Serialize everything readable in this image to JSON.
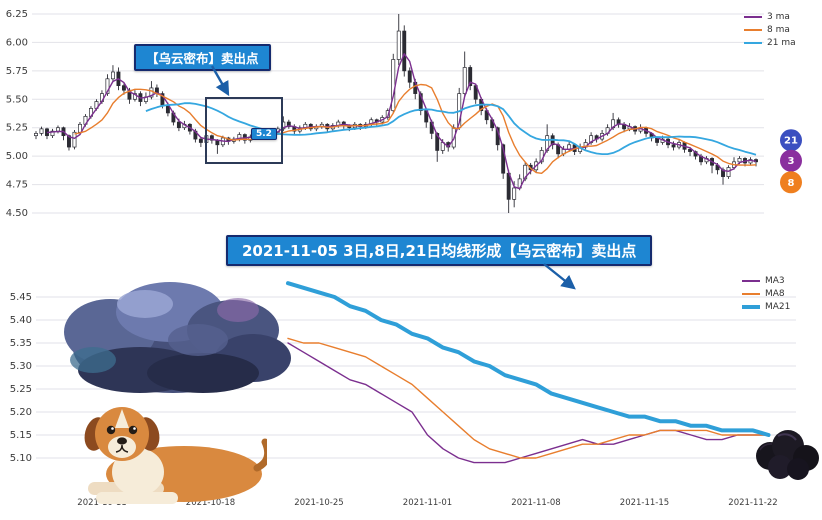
{
  "banner": {
    "text": "2021-11-05 3日,8日,21日均线形成【乌云密布】卖出点"
  },
  "top_annotation": {
    "text": "【乌云密布】卖出点",
    "price_tag": "5.2"
  },
  "chart_data": [
    {
      "type": "candlestick",
      "title": "",
      "legend_position": "top-right",
      "grid": "horizontal",
      "legend": [
        {
          "label": "3 ma",
          "color": "#7b2f8f"
        },
        {
          "label": "8 ma",
          "color": "#e87e2e"
        },
        {
          "label": "21 ma",
          "color": "#35a7e0"
        }
      ],
      "ma_periods": [
        3,
        8,
        21
      ],
      "y_ticks": [
        "6.25",
        "6.00",
        "5.75",
        "5.50",
        "5.25",
        "5.00",
        "4.75",
        "4.50"
      ],
      "ylim": [
        4.4,
        6.35
      ],
      "x_span": [
        "2021-10-08",
        "2021-11-23"
      ],
      "badges": [
        {
          "label": "21",
          "value": 5.14,
          "color": "#3b4fc0"
        },
        {
          "label": "3",
          "value": 4.96,
          "color": "#8a2f9e"
        },
        {
          "label": "8",
          "value": 4.77,
          "color": "#ef7f1f"
        }
      ],
      "candles_ohlc": [
        [
          5.18,
          5.22,
          5.15,
          5.2
        ],
        [
          5.2,
          5.26,
          5.18,
          5.24
        ],
        [
          5.24,
          5.25,
          5.15,
          5.18
        ],
        [
          5.18,
          5.24,
          5.16,
          5.22
        ],
        [
          5.22,
          5.27,
          5.2,
          5.25
        ],
        [
          5.25,
          5.26,
          5.14,
          5.18
        ],
        [
          5.18,
          5.19,
          5.05,
          5.08
        ],
        [
          5.08,
          5.23,
          5.06,
          5.21
        ],
        [
          5.21,
          5.3,
          5.19,
          5.28
        ],
        [
          5.28,
          5.37,
          5.26,
          5.35
        ],
        [
          5.35,
          5.44,
          5.33,
          5.42
        ],
        [
          5.42,
          5.5,
          5.4,
          5.48
        ],
        [
          5.48,
          5.58,
          5.46,
          5.55
        ],
        [
          5.55,
          5.72,
          5.53,
          5.68
        ],
        [
          5.68,
          5.8,
          5.65,
          5.74
        ],
        [
          5.74,
          5.78,
          5.58,
          5.62
        ],
        [
          5.62,
          5.65,
          5.54,
          5.58
        ],
        [
          5.58,
          5.6,
          5.46,
          5.5
        ],
        [
          5.5,
          5.58,
          5.48,
          5.55
        ],
        [
          5.55,
          5.57,
          5.44,
          5.48
        ],
        [
          5.48,
          5.56,
          5.46,
          5.52
        ],
        [
          5.52,
          5.66,
          5.5,
          5.6
        ],
        [
          5.6,
          5.63,
          5.52,
          5.55
        ],
        [
          5.55,
          5.57,
          5.42,
          5.45
        ],
        [
          5.45,
          5.47,
          5.35,
          5.38
        ],
        [
          5.38,
          5.4,
          5.27,
          5.3
        ],
        [
          5.3,
          5.33,
          5.22,
          5.25
        ],
        [
          5.25,
          5.31,
          5.23,
          5.28
        ],
        [
          5.28,
          5.29,
          5.19,
          5.22
        ],
        [
          5.22,
          5.24,
          5.12,
          5.15
        ],
        [
          5.15,
          5.17,
          5.08,
          5.12
        ],
        [
          5.12,
          5.2,
          5.1,
          5.18
        ],
        [
          5.18,
          5.19,
          5.11,
          5.14
        ],
        [
          5.14,
          5.15,
          5.02,
          5.1
        ],
        [
          5.1,
          5.18,
          5.08,
          5.16
        ],
        [
          5.16,
          5.17,
          5.1,
          5.13
        ],
        [
          5.13,
          5.17,
          5.11,
          5.15
        ],
        [
          5.15,
          5.21,
          5.13,
          5.19
        ],
        [
          5.19,
          5.2,
          5.11,
          5.14
        ],
        [
          5.14,
          5.19,
          5.12,
          5.17
        ],
        [
          5.17,
          5.2,
          5.15,
          5.18
        ],
        [
          5.18,
          5.24,
          5.16,
          5.22
        ],
        [
          5.22,
          5.23,
          5.16,
          5.19
        ],
        [
          5.19,
          5.23,
          5.17,
          5.21
        ],
        [
          5.21,
          5.26,
          5.19,
          5.24
        ],
        [
          5.24,
          5.35,
          5.22,
          5.3
        ],
        [
          5.3,
          5.32,
          5.24,
          5.26
        ],
        [
          5.26,
          5.28,
          5.19,
          5.22
        ],
        [
          5.22,
          5.27,
          5.2,
          5.25
        ],
        [
          5.25,
          5.3,
          5.23,
          5.28
        ],
        [
          5.28,
          5.29,
          5.22,
          5.24
        ],
        [
          5.24,
          5.28,
          5.22,
          5.26
        ],
        [
          5.26,
          5.3,
          5.24,
          5.28
        ],
        [
          5.28,
          5.29,
          5.21,
          5.24
        ],
        [
          5.24,
          5.29,
          5.22,
          5.27
        ],
        [
          5.27,
          5.32,
          5.25,
          5.3
        ],
        [
          5.3,
          5.31,
          5.24,
          5.27
        ],
        [
          5.27,
          5.28,
          5.22,
          5.25
        ],
        [
          5.25,
          5.3,
          5.23,
          5.28
        ],
        [
          5.28,
          5.29,
          5.23,
          5.26
        ],
        [
          5.26,
          5.3,
          5.24,
          5.28
        ],
        [
          5.28,
          5.34,
          5.26,
          5.32
        ],
        [
          5.32,
          5.33,
          5.27,
          5.3
        ],
        [
          5.3,
          5.36,
          5.28,
          5.34
        ],
        [
          5.34,
          5.42,
          5.32,
          5.4
        ],
        [
          5.4,
          5.9,
          5.38,
          5.85
        ],
        [
          5.85,
          6.25,
          5.8,
          6.1
        ],
        [
          6.1,
          6.15,
          5.7,
          5.75
        ],
        [
          5.75,
          5.78,
          5.6,
          5.65
        ],
        [
          5.65,
          5.68,
          5.5,
          5.55
        ],
        [
          5.55,
          5.57,
          5.36,
          5.4
        ],
        [
          5.4,
          5.42,
          5.25,
          5.3
        ],
        [
          5.3,
          5.32,
          5.15,
          5.2
        ],
        [
          5.2,
          5.21,
          4.95,
          5.05
        ],
        [
          5.05,
          5.15,
          5.02,
          5.12
        ],
        [
          5.12,
          5.13,
          5.04,
          5.08
        ],
        [
          5.08,
          5.28,
          5.06,
          5.25
        ],
        [
          5.25,
          5.6,
          5.23,
          5.55
        ],
        [
          5.55,
          5.92,
          5.52,
          5.78
        ],
        [
          5.78,
          5.8,
          5.58,
          5.62
        ],
        [
          5.62,
          5.63,
          5.46,
          5.5
        ],
        [
          5.5,
          5.52,
          5.36,
          5.4
        ],
        [
          5.4,
          5.42,
          5.28,
          5.32
        ],
        [
          5.32,
          5.34,
          5.22,
          5.25
        ],
        [
          5.25,
          5.26,
          5.05,
          5.1
        ],
        [
          5.1,
          5.11,
          4.8,
          4.85
        ],
        [
          4.85,
          4.88,
          4.5,
          4.62
        ],
        [
          4.62,
          4.78,
          4.55,
          4.72
        ],
        [
          4.72,
          4.84,
          4.7,
          4.8
        ],
        [
          4.8,
          4.95,
          4.78,
          4.92
        ],
        [
          4.92,
          4.94,
          4.84,
          4.88
        ],
        [
          4.88,
          4.98,
          4.86,
          4.95
        ],
        [
          4.95,
          5.08,
          4.93,
          5.05
        ],
        [
          5.05,
          5.28,
          5.03,
          5.18
        ],
        [
          5.18,
          5.2,
          5.06,
          5.1
        ],
        [
          5.1,
          5.12,
          4.98,
          5.02
        ],
        [
          5.02,
          5.09,
          5.0,
          5.06
        ],
        [
          5.06,
          5.13,
          5.04,
          5.1
        ],
        [
          5.1,
          5.11,
          5.01,
          5.04
        ],
        [
          5.04,
          5.11,
          5.02,
          5.08
        ],
        [
          5.08,
          5.15,
          5.06,
          5.12
        ],
        [
          5.12,
          5.21,
          5.1,
          5.18
        ],
        [
          5.18,
          5.19,
          5.12,
          5.15
        ],
        [
          5.15,
          5.23,
          5.13,
          5.2
        ],
        [
          5.2,
          5.28,
          5.18,
          5.25
        ],
        [
          5.25,
          5.38,
          5.23,
          5.32
        ],
        [
          5.32,
          5.34,
          5.25,
          5.28
        ],
        [
          5.28,
          5.3,
          5.21,
          5.24
        ],
        [
          5.24,
          5.29,
          5.22,
          5.26
        ],
        [
          5.26,
          5.27,
          5.19,
          5.22
        ],
        [
          5.22,
          5.28,
          5.2,
          5.25
        ],
        [
          5.25,
          5.26,
          5.17,
          5.2
        ],
        [
          5.2,
          5.21,
          5.13,
          5.16
        ],
        [
          5.16,
          5.17,
          5.09,
          5.12
        ],
        [
          5.12,
          5.18,
          5.1,
          5.15
        ],
        [
          5.15,
          5.16,
          5.07,
          5.1
        ],
        [
          5.1,
          5.13,
          5.05,
          5.08
        ],
        [
          5.08,
          5.14,
          5.06,
          5.12
        ],
        [
          5.12,
          5.13,
          5.03,
          5.06
        ],
        [
          5.06,
          5.08,
          5.0,
          5.04
        ],
        [
          5.04,
          5.05,
          4.97,
          5.0
        ],
        [
          5.0,
          5.02,
          4.92,
          4.95
        ],
        [
          4.95,
          5.0,
          4.93,
          4.98
        ],
        [
          4.98,
          4.99,
          4.85,
          4.92
        ],
        [
          4.92,
          4.94,
          4.84,
          4.88
        ],
        [
          4.88,
          4.9,
          4.75,
          4.82
        ],
        [
          4.82,
          4.92,
          4.8,
          4.9
        ],
        [
          4.9,
          4.99,
          4.88,
          4.95
        ],
        [
          4.95,
          5.0,
          4.93,
          4.98
        ],
        [
          4.98,
          4.99,
          4.91,
          4.94
        ],
        [
          4.94,
          4.99,
          4.92,
          4.97
        ],
        [
          4.97,
          4.98,
          4.91,
          4.95
        ]
      ]
    },
    {
      "type": "line",
      "grid": "horizontal",
      "legend_position": "top-right",
      "y_ticks": [
        "5.45",
        "5.40",
        "5.35",
        "5.30",
        "5.25",
        "5.20",
        "5.15",
        "5.10"
      ],
      "ylim": [
        5.06,
        5.5
      ],
      "x_ticks": [
        {
          "label": "2021-10-11",
          "day": 4
        },
        {
          "label": "2021-10-18",
          "day": 11
        },
        {
          "label": "2021-10-25",
          "day": 18
        },
        {
          "label": "2021-11-01",
          "day": 25
        },
        {
          "label": "2021-11-08",
          "day": 32
        },
        {
          "label": "2021-11-15",
          "day": 39
        },
        {
          "label": "2021-11-22",
          "day": 46
        }
      ],
      "series": [
        {
          "name": "MA3",
          "color": "#7b2f8f",
          "width": 1.4,
          "start_day": 16,
          "values": [
            5.35,
            5.33,
            5.31,
            5.29,
            5.27,
            5.26,
            5.24,
            5.22,
            5.2,
            5.15,
            5.12,
            5.1,
            5.09,
            5.09,
            5.09,
            5.1,
            5.11,
            5.12,
            5.13,
            5.14,
            5.13,
            5.13,
            5.14,
            5.15,
            5.16,
            5.16,
            5.15,
            5.14,
            5.14,
            5.15,
            5.15,
            5.15
          ]
        },
        {
          "name": "MA8",
          "color": "#e87e2e",
          "width": 1.4,
          "start_day": 16,
          "values": [
            5.36,
            5.35,
            5.35,
            5.34,
            5.33,
            5.32,
            5.3,
            5.28,
            5.26,
            5.23,
            5.2,
            5.17,
            5.14,
            5.12,
            5.11,
            5.1,
            5.1,
            5.11,
            5.12,
            5.13,
            5.13,
            5.14,
            5.15,
            5.15,
            5.16,
            5.16,
            5.16,
            5.16,
            5.15,
            5.15,
            5.15,
            5.15
          ]
        },
        {
          "name": "MA21",
          "color": "#2f9fd8",
          "width": 4,
          "start_day": 16,
          "values": [
            5.48,
            5.47,
            5.46,
            5.45,
            5.43,
            5.42,
            5.4,
            5.39,
            5.37,
            5.36,
            5.34,
            5.33,
            5.31,
            5.3,
            5.28,
            5.27,
            5.26,
            5.24,
            5.23,
            5.22,
            5.21,
            5.2,
            5.19,
            5.19,
            5.18,
            5.18,
            5.17,
            5.17,
            5.16,
            5.16,
            5.16,
            5.15
          ]
        }
      ]
    }
  ]
}
